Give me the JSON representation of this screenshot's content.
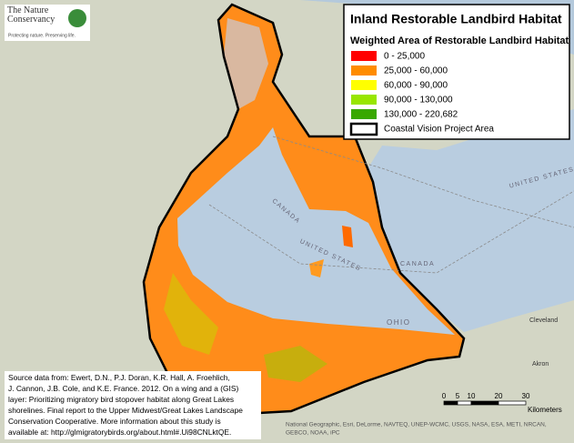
{
  "logo": {
    "name": "The Nature Conservancy",
    "tagline": "Protecting nature. Preserving life."
  },
  "legend": {
    "title": "Inland Restorable Landbird Habitat",
    "subtitle": "Weighted Area of Restorable Landbird Habitat",
    "items": [
      {
        "label": "0 - 25,000",
        "color": "#ff0000"
      },
      {
        "label": "25,000 - 60,000",
        "color": "#ff8c00"
      },
      {
        "label": "60,000 - 90,000",
        "color": "#ffff00"
      },
      {
        "label": "90,000 - 130,000",
        "color": "#98e600"
      },
      {
        "label": "130,000 - 220,682",
        "color": "#38a800"
      }
    ],
    "project_area": "Coastal Vision Project Area"
  },
  "places": [
    {
      "label": "CANADA"
    },
    {
      "label": "UNITED STATES"
    },
    {
      "label": "CANADA"
    },
    {
      "label": "UNITED STATES"
    },
    {
      "label": "OHIO"
    },
    {
      "label": "Cleveland"
    },
    {
      "label": "Akron"
    }
  ],
  "source": [
    "Source data from:  Ewert, D.N., P.J. Doran, K.R. Hall, A. Froehlich,",
    "J. Cannon, J.B. Cole, and K.E. France. 2012. On a wing and a (GIS)",
    "layer: Prioritizing migratory bird stopover habitat along Great Lakes",
    "shorelines. Final report to the Upper Midwest/Great Lakes Landscape",
    "Conservation Cooperative.  More information about this study is",
    "available at: http://glmigratorybirds.org/about.html#.Ui98CNLktQE."
  ],
  "scale": {
    "ticks": [
      0,
      5,
      10,
      20,
      30
    ],
    "unit": "Kilometers"
  },
  "attribution": [
    "National Geographic, Esri, DeLorme, NAVTEQ, UNEP-WCMC, USGS, NASA, ESA, METI, NRCAN,",
    "GEBCO, NOAA, iPC"
  ]
}
